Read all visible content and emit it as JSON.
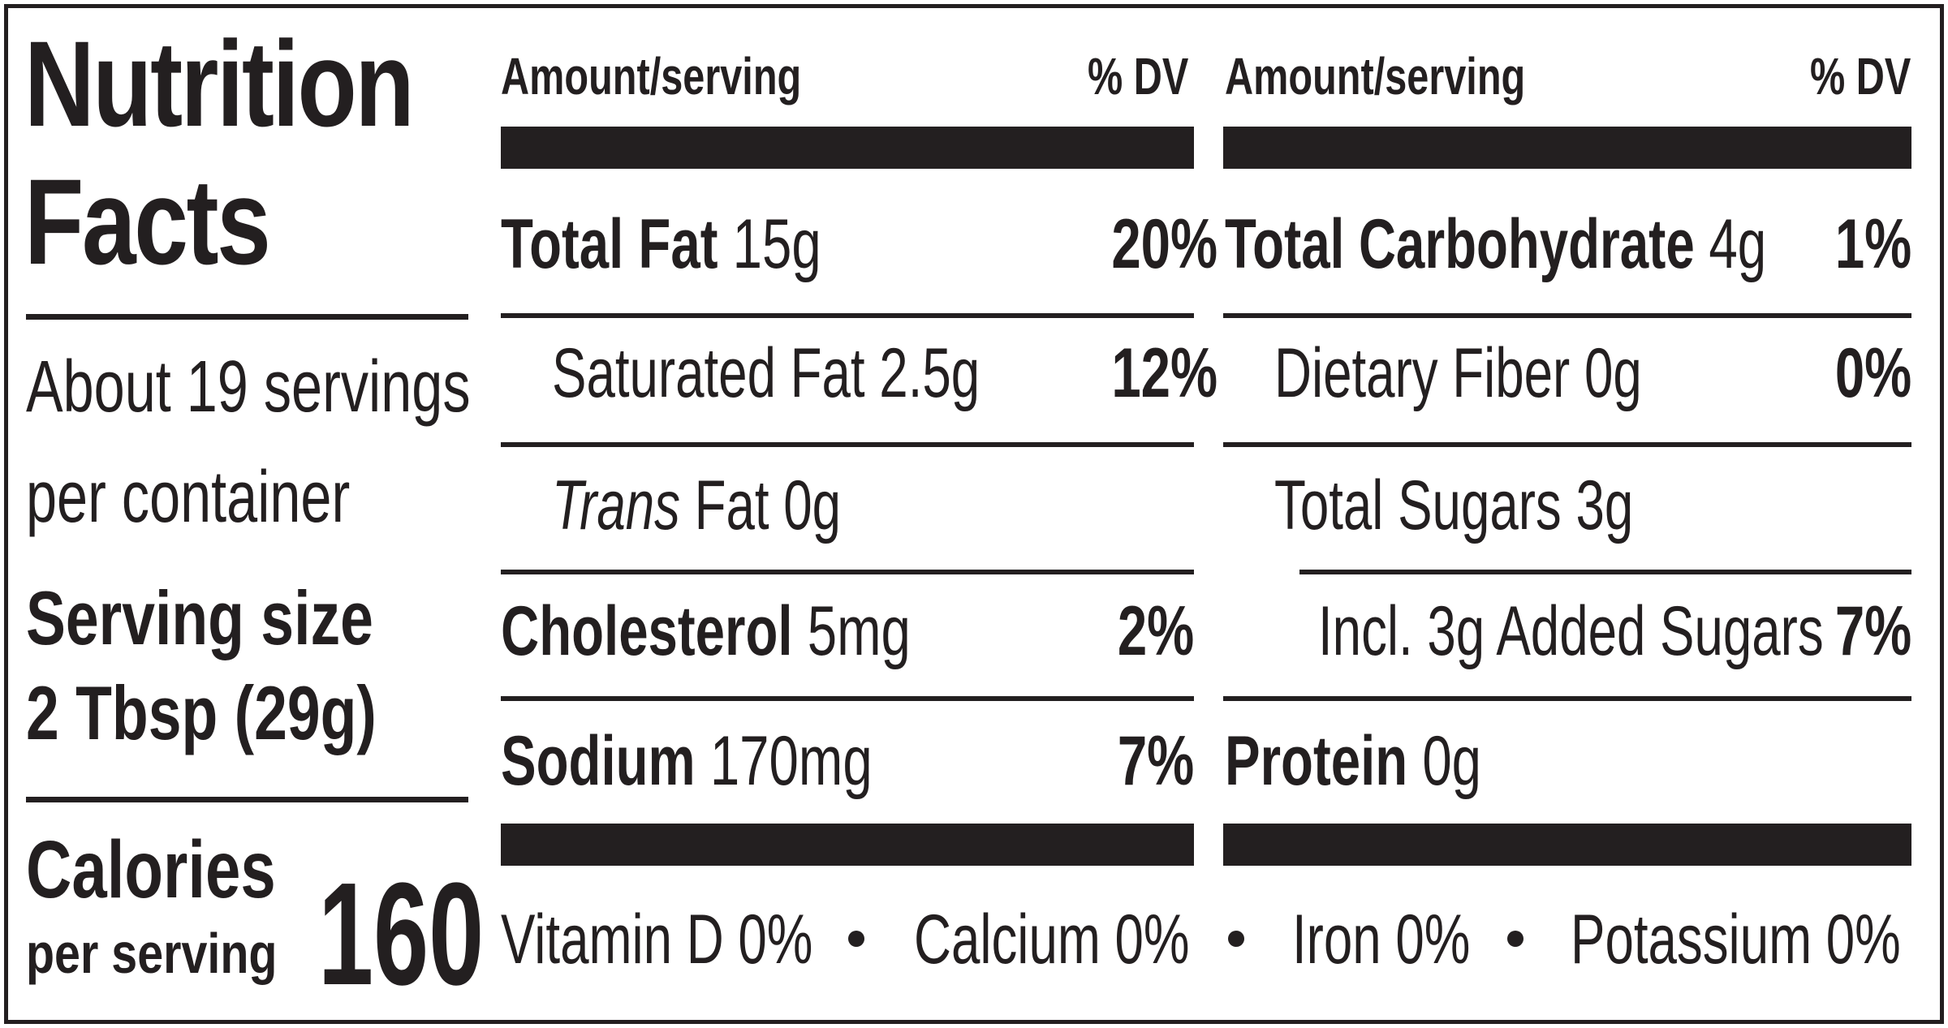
{
  "title": {
    "line1": "Nutrition",
    "line2": "Facts"
  },
  "servings": {
    "line1": "About 19 servings",
    "line2": "per container"
  },
  "serving_size": {
    "label": "Serving size",
    "value": "2 Tbsp (29g)"
  },
  "calories": {
    "label": "Calories",
    "sub": "per serving",
    "value": "160"
  },
  "headers": {
    "left_amount": "Amount/serving",
    "left_dv": "% DV",
    "right_amount": "Amount/serving",
    "right_dv": "% DV"
  },
  "left_rows": [
    {
      "name": "Total Fat",
      "amount": "15g",
      "dv": "20%"
    },
    {
      "name": "Saturated Fat",
      "amount": "2.5g",
      "dv": "12%"
    },
    {
      "name": "Trans",
      "amount": "Fat 0g",
      "dv": ""
    },
    {
      "name": "Cholesterol",
      "amount": "5mg",
      "dv": "2%"
    },
    {
      "name": "Sodium",
      "amount": "170mg",
      "dv": "7%"
    }
  ],
  "right_rows": [
    {
      "name": "Total Carbohydrate",
      "amount": "4g",
      "dv": "1%"
    },
    {
      "name": "Dietary Fiber",
      "amount": "0g",
      "dv": "0%"
    },
    {
      "name": "Total Sugars",
      "amount": "3g",
      "dv": ""
    },
    {
      "name": "Incl. 3g Added Sugars",
      "amount": "",
      "dv": "7%"
    },
    {
      "name": "Protein",
      "amount": "0g",
      "dv": ""
    }
  ],
  "vitamins": [
    "Vitamin D 0%",
    "Calcium 0%",
    "Iron 0%",
    "Potassium 0%"
  ]
}
